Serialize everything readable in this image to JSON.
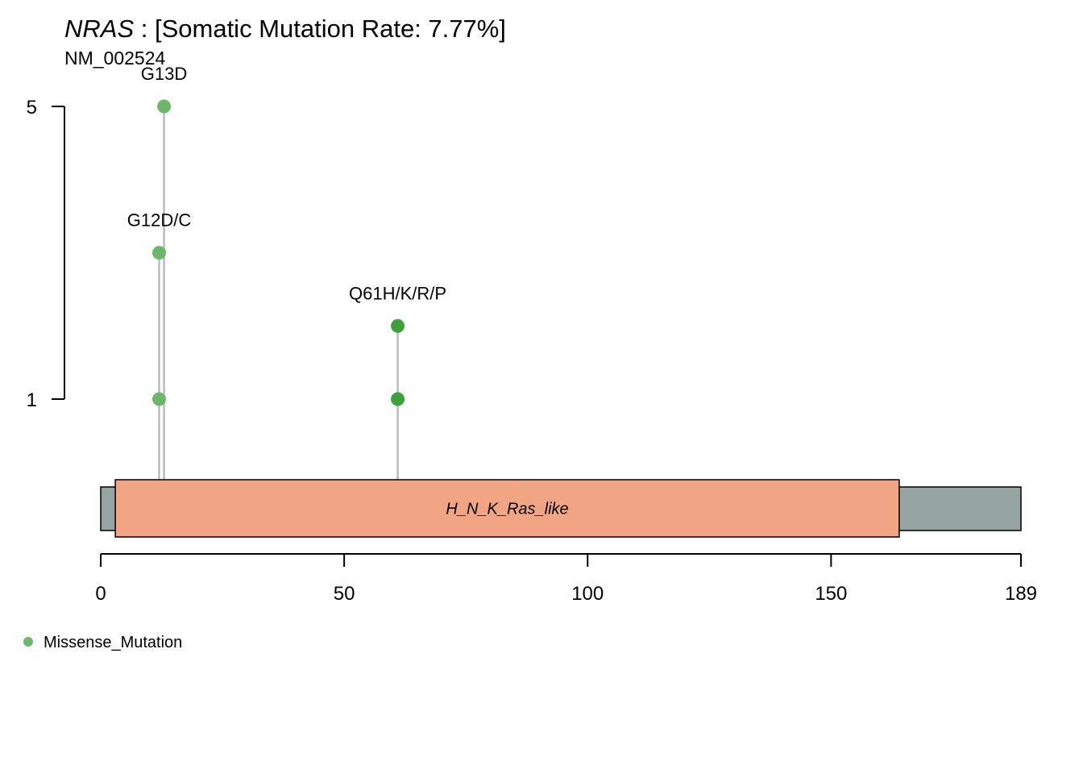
{
  "chart_data": {
    "type": "lollipop",
    "title_gene": "NRAS",
    "title_rest": " : [Somatic Mutation Rate: 7.77%]",
    "subtitle": "NM_002524",
    "protein_length": 189,
    "x_ticks": [
      0,
      50,
      100,
      150,
      189
    ],
    "y_ticks": [
      1,
      5
    ],
    "y_range": [
      1,
      5
    ],
    "domains": [
      {
        "name": "H_N_K_Ras_like",
        "start": 3,
        "end": 164,
        "color": "#F2A584"
      }
    ],
    "backbone_color": "#96A4A2",
    "stems": [
      {
        "position": 12,
        "height": 3
      },
      {
        "position": 13,
        "height": 5
      },
      {
        "position": 61,
        "height": 2
      }
    ],
    "points": [
      {
        "position": 12,
        "count": 1,
        "color": "#6DB76C"
      },
      {
        "position": 12,
        "count": 3,
        "color": "#6DB76C"
      },
      {
        "position": 13,
        "count": 5,
        "color": "#6DB76C"
      },
      {
        "position": 61,
        "count": 1,
        "color": "#3EA03A"
      },
      {
        "position": 61,
        "count": 2,
        "color": "#3EA03A"
      }
    ],
    "labels": [
      {
        "text": "G13D",
        "position": 13,
        "count": 5
      },
      {
        "text": "G12D/C",
        "position": 12,
        "count": 3
      },
      {
        "text": "Q61H/K/R/P",
        "position": 61,
        "count": 2
      }
    ],
    "legend": [
      {
        "label": "Missense_Mutation",
        "color": "#6DB76C"
      }
    ]
  }
}
